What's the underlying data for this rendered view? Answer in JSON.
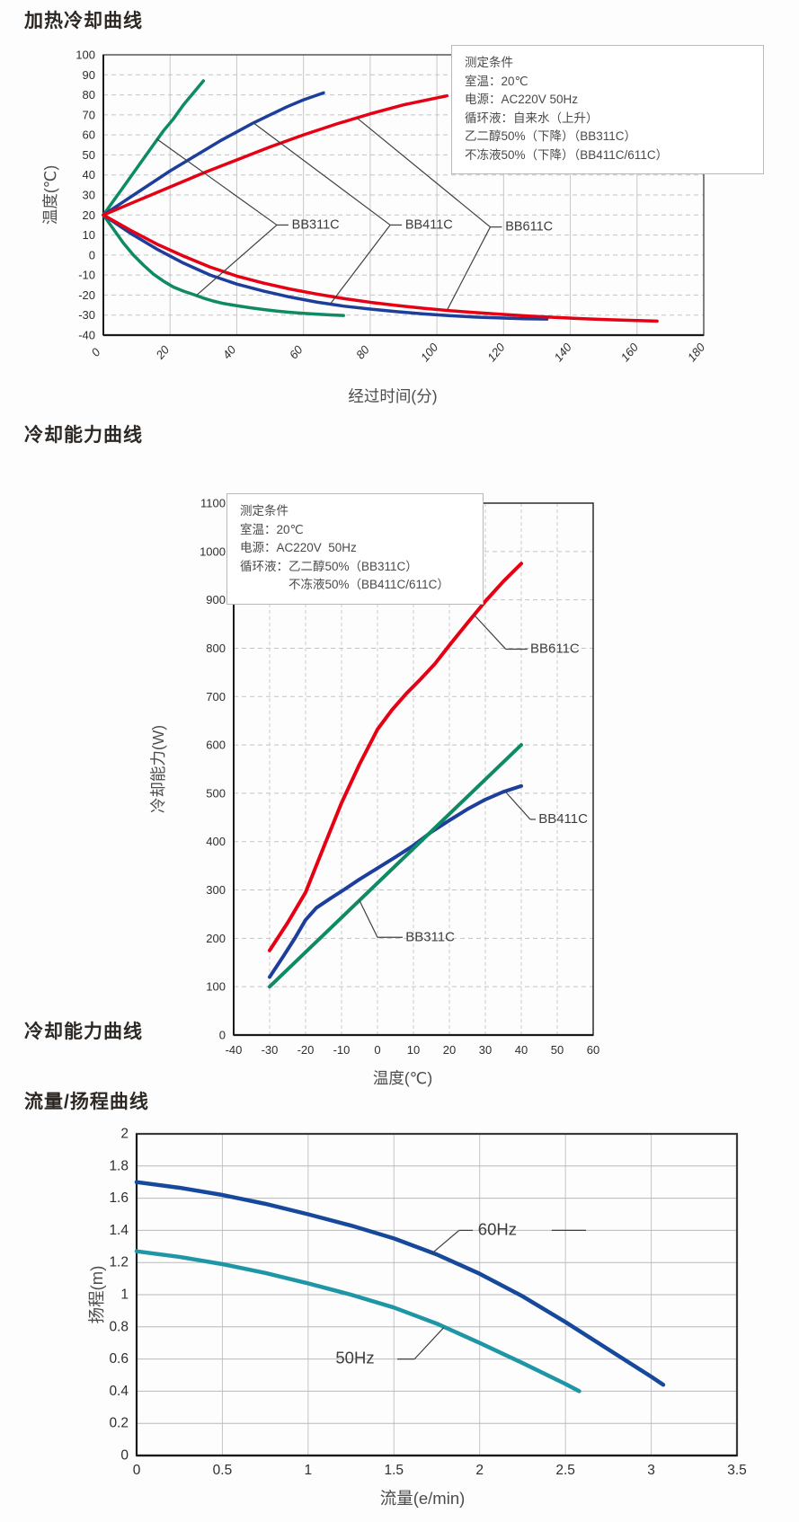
{
  "sections": {
    "heating_cooling": {
      "title": "加热冷却曲线"
    },
    "cooling_capacity": {
      "title": "冷却能力曲线",
      "footer_title": "冷却能力曲线"
    },
    "flow_head": {
      "title": "流量/扬程曲线"
    }
  },
  "colors": {
    "bb311c": "#0e8a64",
    "bb411c": "#1d3e9b",
    "bb611c": "#e60013",
    "hz60": "#16489b",
    "hz50": "#1f96a6"
  },
  "chart_data": [
    {
      "id": "heating-cooling",
      "type": "line",
      "title": "加热冷却曲线",
      "xlabel": "经过时间(分)",
      "ylabel": "温度(℃)",
      "xlim": [
        0,
        180
      ],
      "xtick_step": 20,
      "ylim": [
        -40,
        100
      ],
      "ytick_step": 10,
      "grid": "horizontal-dashed vertical-solid",
      "conditions_box": [
        "测定条件",
        "室温：20℃",
        "电源：AC220V 50Hz",
        "循环液：自来水（上升）",
        "乙二醇50%（下降）（BB311C）",
        "不冻液50%（下降）（BB411C/611C）"
      ],
      "series": [
        {
          "key": "bb311c-heating",
          "name": "BB311C 加热(自来水上升)",
          "color": "#0e8a64",
          "points": [
            [
              0,
              20
            ],
            [
              3,
              27
            ],
            [
              6,
              34
            ],
            [
              9,
              41
            ],
            [
              12,
              48
            ],
            [
              15,
              55
            ],
            [
              18,
              62
            ],
            [
              21,
              68
            ],
            [
              24,
              75
            ],
            [
              27,
              81
            ],
            [
              30,
              87
            ]
          ]
        },
        {
          "key": "bb411c-heating",
          "name": "BB411C 加热(自来水上升)",
          "color": "#1d3e9b",
          "points": [
            [
              0,
              20
            ],
            [
              5,
              25.5
            ],
            [
              10,
              31
            ],
            [
              15,
              36.5
            ],
            [
              20,
              42
            ],
            [
              25,
              47
            ],
            [
              30,
              52
            ],
            [
              35,
              57
            ],
            [
              40,
              61.5
            ],
            [
              45,
              66
            ],
            [
              50,
              70
            ],
            [
              55,
              74
            ],
            [
              60,
              77.5
            ],
            [
              66,
              81
            ]
          ]
        },
        {
          "key": "bb611c-heating",
          "name": "BB611C 加热(自来水上升)",
          "color": "#e60013",
          "points": [
            [
              0,
              20
            ],
            [
              10,
              27
            ],
            [
              20,
              34
            ],
            [
              30,
              41
            ],
            [
              40,
              47.5
            ],
            [
              50,
              54
            ],
            [
              60,
              60
            ],
            [
              70,
              65.5
            ],
            [
              80,
              70.5
            ],
            [
              90,
              75
            ],
            [
              100,
              78.5
            ],
            [
              103,
              79.5
            ]
          ]
        },
        {
          "key": "bb311c-cooling",
          "name": "BB311C 冷却(乙二醇50%下降)",
          "color": "#0e8a64",
          "points": [
            [
              0,
              20
            ],
            [
              3,
              13
            ],
            [
              6,
              6
            ],
            [
              9,
              0
            ],
            [
              12,
              -5
            ],
            [
              15,
              -9.5
            ],
            [
              18,
              -13
            ],
            [
              21,
              -16
            ],
            [
              24,
              -18
            ],
            [
              27,
              -19.7
            ],
            [
              30,
              -21.5
            ],
            [
              33,
              -23
            ],
            [
              36,
              -24.2
            ],
            [
              40,
              -25.3
            ],
            [
              44,
              -26.3
            ],
            [
              48,
              -27.2
            ],
            [
              52,
              -28
            ],
            [
              56,
              -28.6
            ],
            [
              60,
              -29.1
            ],
            [
              64,
              -29.5
            ],
            [
              68,
              -29.9
            ],
            [
              72,
              -30.2
            ]
          ]
        },
        {
          "key": "bb411c-cooling",
          "name": "BB411C 冷却(不冻液50%下降)",
          "color": "#1d3e9b",
          "points": [
            [
              0,
              20
            ],
            [
              8,
              11
            ],
            [
              16,
              3
            ],
            [
              24,
              -4
            ],
            [
              32,
              -10
            ],
            [
              40,
              -14.5
            ],
            [
              48,
              -18
            ],
            [
              56,
              -21
            ],
            [
              64,
              -23.5
            ],
            [
              72,
              -25.5
            ],
            [
              80,
              -27
            ],
            [
              88,
              -28.3
            ],
            [
              96,
              -29.4
            ],
            [
              104,
              -30.3
            ],
            [
              112,
              -31
            ],
            [
              120,
              -31.5
            ],
            [
              126,
              -31.8
            ],
            [
              133,
              -32
            ]
          ]
        },
        {
          "key": "bb611c-cooling",
          "name": "BB611C 冷却(不冻液50%下降)",
          "color": "#e60013",
          "points": [
            [
              0,
              20
            ],
            [
              8,
              12.5
            ],
            [
              16,
              5.5
            ],
            [
              24,
              -0.5
            ],
            [
              32,
              -6
            ],
            [
              40,
              -10.5
            ],
            [
              48,
              -14
            ],
            [
              56,
              -17
            ],
            [
              64,
              -19.5
            ],
            [
              72,
              -21.7
            ],
            [
              80,
              -23.6
            ],
            [
              88,
              -25.2
            ],
            [
              96,
              -26.6
            ],
            [
              104,
              -27.8
            ],
            [
              112,
              -28.8
            ],
            [
              120,
              -29.7
            ],
            [
              128,
              -30.5
            ],
            [
              136,
              -31.2
            ],
            [
              144,
              -31.8
            ],
            [
              152,
              -32.3
            ],
            [
              160,
              -32.7
            ],
            [
              166,
              -33
            ]
          ]
        }
      ],
      "labels": [
        {
          "text": "BB311C",
          "text_at": [
            56.5,
            15
          ],
          "segments": [
            [
              [
                16,
                58
              ],
              [
                52,
                15
              ]
            ],
            [
              [
                28,
                -20
              ],
              [
                52,
                15
              ]
            ],
            [
              [
                52,
                15
              ],
              [
                55.5,
                15
              ]
            ]
          ]
        },
        {
          "text": "BB411C",
          "text_at": [
            90.5,
            15
          ],
          "segments": [
            [
              [
                45,
                66
              ],
              [
                86,
                15
              ]
            ],
            [
              [
                68,
                -24.5
              ],
              [
                86,
                15
              ]
            ],
            [
              [
                86,
                15
              ],
              [
                89.5,
                15
              ]
            ]
          ]
        },
        {
          "text": "BB611C",
          "text_at": [
            120.5,
            14
          ],
          "segments": [
            [
              [
                76,
                68.5
              ],
              [
                116,
                14
              ]
            ],
            [
              [
                103,
                -27.7
              ],
              [
                116,
                14
              ]
            ],
            [
              [
                116,
                14
              ],
              [
                119.5,
                14
              ]
            ]
          ]
        }
      ]
    },
    {
      "id": "cooling-capacity",
      "type": "line",
      "title": "冷却能力曲线",
      "xlabel": "温度(℃)",
      "ylabel": "冷却能力(W)",
      "xlim": [
        -40,
        60
      ],
      "xtick_step": 10,
      "ylim": [
        0,
        1100
      ],
      "ytick_step": 100,
      "grid": "horizontal-dashed vertical-dashed",
      "conditions_box": [
        "测定条件",
        "室温：20℃",
        "电源：AC220V  50Hz",
        "循环液：乙二醇50%（BB311C）",
        "　　　　不冻液50%（BB411C/611C）"
      ],
      "series": [
        {
          "key": "bb611c",
          "name": "BB611C",
          "color": "#e60013",
          "points": [
            [
              -30,
              175
            ],
            [
              -25,
              232
            ],
            [
              -20,
              295
            ],
            [
              -15,
              388
            ],
            [
              -10,
              480
            ],
            [
              -5,
              560
            ],
            [
              0,
              632
            ],
            [
              4,
              672
            ],
            [
              8,
              706
            ],
            [
              12,
              736
            ],
            [
              16,
              768
            ],
            [
              20,
              806
            ],
            [
              25,
              852
            ],
            [
              30,
              897
            ],
            [
              35,
              938
            ],
            [
              40,
              975
            ]
          ]
        },
        {
          "key": "bb411c",
          "name": "BB411C",
          "color": "#1d3e9b",
          "points": [
            [
              -30,
              120
            ],
            [
              -26,
              165
            ],
            [
              -23,
              200
            ],
            [
              -20,
              238
            ],
            [
              -17,
              263
            ],
            [
              -13,
              283
            ],
            [
              -9,
              302
            ],
            [
              -5,
              322
            ],
            [
              0,
              345
            ],
            [
              5,
              368
            ],
            [
              10,
              392
            ],
            [
              15,
              420
            ],
            [
              20,
              444
            ],
            [
              25,
              467
            ],
            [
              30,
              487
            ],
            [
              35,
              503
            ],
            [
              40,
              515
            ]
          ]
        },
        {
          "key": "bb311c",
          "name": "BB311C",
          "color": "#0e8a64",
          "points": [
            [
              -30,
              100
            ],
            [
              40,
              600
            ]
          ]
        }
      ],
      "labels": [
        {
          "text": "BB611C",
          "text_at": [
            42.5,
            798
          ],
          "segments": [
            [
              [
                27,
                868
              ],
              [
                35.7,
                798
              ]
            ],
            [
              [
                35.7,
                798
              ],
              [
                41.7,
                798
              ]
            ]
          ]
        },
        {
          "text": "BB411C",
          "text_at": [
            44.8,
            446
          ],
          "segments": [
            [
              [
                35.5,
                504
              ],
              [
                42.5,
                446
              ]
            ],
            [
              [
                42.5,
                446
              ],
              [
                44,
                446
              ]
            ]
          ]
        },
        {
          "text": "BB311C",
          "text_at": [
            7.8,
            202
          ],
          "segments": [
            [
              [
                -5,
                278
              ],
              [
                0,
                202
              ]
            ],
            [
              [
                0,
                202
              ],
              [
                7,
                202
              ]
            ]
          ]
        }
      ]
    },
    {
      "id": "flow-head",
      "type": "line",
      "title": "流量/扬程曲线",
      "xlabel": "流量(e/min)",
      "ylabel": "扬程(m)",
      "xlim": [
        0,
        3.5
      ],
      "xtick_step": 0.5,
      "ylim": [
        0,
        2
      ],
      "ytick_step": 0.2,
      "grid": "solid",
      "series": [
        {
          "key": "60hz",
          "name": "60Hz",
          "color": "#16489b",
          "points": [
            [
              0,
              1.7
            ],
            [
              0.25,
              1.665
            ],
            [
              0.5,
              1.62
            ],
            [
              0.75,
              1.565
            ],
            [
              1.0,
              1.5
            ],
            [
              1.25,
              1.43
            ],
            [
              1.5,
              1.35
            ],
            [
              1.75,
              1.25
            ],
            [
              2.0,
              1.13
            ],
            [
              2.25,
              0.99
            ],
            [
              2.5,
              0.83
            ],
            [
              2.75,
              0.66
            ],
            [
              3.0,
              0.49
            ],
            [
              3.07,
              0.44
            ]
          ]
        },
        {
          "key": "50hz",
          "name": "50Hz",
          "color": "#1f96a6",
          "points": [
            [
              0,
              1.27
            ],
            [
              0.25,
              1.235
            ],
            [
              0.5,
              1.19
            ],
            [
              0.75,
              1.135
            ],
            [
              1.0,
              1.07
            ],
            [
              1.25,
              1.0
            ],
            [
              1.5,
              0.92
            ],
            [
              1.75,
              0.82
            ],
            [
              2.0,
              0.7
            ],
            [
              2.25,
              0.575
            ],
            [
              2.5,
              0.445
            ],
            [
              2.58,
              0.4
            ]
          ]
        }
      ],
      "labels": [
        {
          "text": "60Hz",
          "text_at": [
            1.99,
            1.4
          ],
          "segments": [
            [
              [
                1.72,
                1.255
              ],
              [
                1.88,
                1.4
              ]
            ],
            [
              [
                1.88,
                1.4
              ],
              [
                1.96,
                1.4
              ]
            ],
            [
              [
                2.42,
                1.4
              ],
              [
                2.62,
                1.4
              ]
            ]
          ]
        },
        {
          "text": "50Hz",
          "text_at": [
            1.16,
            0.6
          ],
          "segments": [
            [
              [
                1.52,
                0.6
              ],
              [
                1.62,
                0.6
              ]
            ],
            [
              [
                1.62,
                0.6
              ],
              [
                1.79,
                0.795
              ]
            ]
          ]
        }
      ]
    }
  ]
}
